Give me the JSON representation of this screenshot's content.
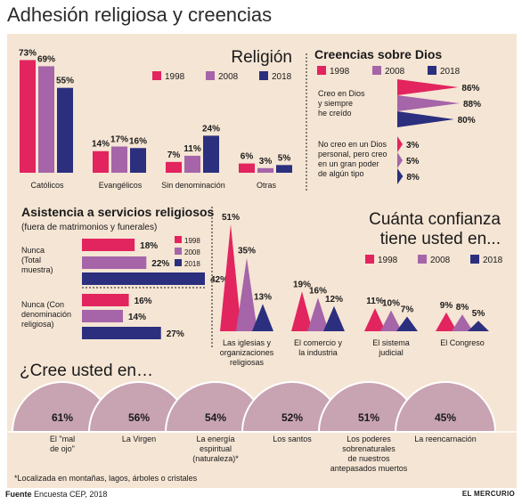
{
  "title": "Adhesión religiosa y creencias",
  "footnote": "*Localizada en montañas, lagos, árboles o cristales",
  "source_label": "Fuente",
  "source_text": "Encuesta CEP, 2018",
  "brand": "EL MERCURIO",
  "colors": {
    "1998": "#e2245f",
    "2008": "#a565a8",
    "2018": "#2b2f7e",
    "background": "#f5e5d4",
    "dome": "#c8a3b2"
  },
  "chart_data": [
    {
      "id": "religion",
      "type": "bar",
      "title": "Religión",
      "legend": [
        "1998",
        "2008",
        "2018"
      ],
      "categories": [
        "Católicos",
        "Evangélicos",
        "Sin denominación",
        "Otras"
      ],
      "series": [
        {
          "name": "1998",
          "values": [
            73,
            14,
            7,
            6
          ]
        },
        {
          "name": "2008",
          "values": [
            69,
            17,
            11,
            3
          ]
        },
        {
          "name": "2018",
          "values": [
            55,
            16,
            24,
            5
          ]
        }
      ],
      "ylim": [
        0,
        75
      ]
    },
    {
      "id": "creencias",
      "type": "bar",
      "title": "Creencias sobre Dios",
      "legend": [
        "1998",
        "2008",
        "2018"
      ],
      "categories": [
        "Creo en Dios y siempre he creído",
        "No creo en un Dios personal, pero creo en un gran poder de algún tipo"
      ],
      "category_lines": [
        [
          "Creo en Dios",
          "y siempre",
          "he creído"
        ],
        [
          "No creo en un Dios",
          "personal, pero creo",
          "en un gran poder",
          "de algún tipo"
        ]
      ],
      "series": [
        {
          "name": "1998",
          "values": [
            86,
            3
          ]
        },
        {
          "name": "2008",
          "values": [
            88,
            5
          ]
        },
        {
          "name": "2018",
          "values": [
            80,
            8
          ]
        }
      ],
      "ylim": [
        0,
        88
      ]
    },
    {
      "id": "asistencia",
      "type": "bar",
      "title": "Asistencia a servicios religiosos",
      "subtitle": "(fuera de matrimonios y funerales)",
      "legend": [
        "1998",
        "2008",
        "2018"
      ],
      "categories": [
        "Nunca (Total muestra)",
        "Nunca (Con denominación religiosa)"
      ],
      "category_lines": [
        [
          "Nunca",
          "(Total",
          "muestra)"
        ],
        [
          "Nunca (Con",
          "denominación",
          "religiosa)"
        ]
      ],
      "series": [
        {
          "name": "1998",
          "values": [
            18,
            16
          ]
        },
        {
          "name": "2008",
          "values": [
            22,
            14
          ]
        },
        {
          "name": "2018",
          "values": [
            42,
            27
          ]
        }
      ],
      "ylim": [
        0,
        42
      ]
    },
    {
      "id": "confianza",
      "type": "bar",
      "title_lines": [
        "Cuánta confianza",
        "tiene usted en..."
      ],
      "legend": [
        "1998",
        "2008",
        "2018"
      ],
      "categories": [
        "Las iglesias y organizaciones religiosas",
        "El comercio y la industria",
        "El sistema judicial",
        "El Congreso"
      ],
      "category_lines": [
        [
          "Las iglesias y",
          "organizaciones",
          "religiosas"
        ],
        [
          "El comercio y",
          "la industria"
        ],
        [
          "El sistema",
          "judicial"
        ],
        [
          "El Congreso"
        ]
      ],
      "series": [
        {
          "name": "1998",
          "values": [
            51,
            19,
            11,
            9
          ]
        },
        {
          "name": "2008",
          "values": [
            35,
            16,
            10,
            8
          ]
        },
        {
          "name": "2018",
          "values": [
            13,
            12,
            7,
            5
          ]
        }
      ],
      "ylim": [
        0,
        51
      ]
    },
    {
      "id": "cree",
      "type": "bar",
      "title": "¿Cree usted en…",
      "categories": [
        "El \"mal de ojo\"",
        "La Virgen",
        "La energía espiritual (naturaleza)*",
        "Los santos",
        "Los poderes sobrenaturales de nuestros antepasados muertos",
        "La reencarnación"
      ],
      "category_lines": [
        [
          "El \"mal",
          "de ojo\""
        ],
        [
          "La Virgen"
        ],
        [
          "La energía",
          "espiritual",
          "(naturaleza)*"
        ],
        [
          "Los santos"
        ],
        [
          "Los poderes",
          "sobrenaturales",
          "de nuestros",
          "antepasados muertos"
        ],
        [
          "La reencarnación"
        ]
      ],
      "values": [
        61,
        56,
        54,
        52,
        51,
        45
      ]
    }
  ]
}
